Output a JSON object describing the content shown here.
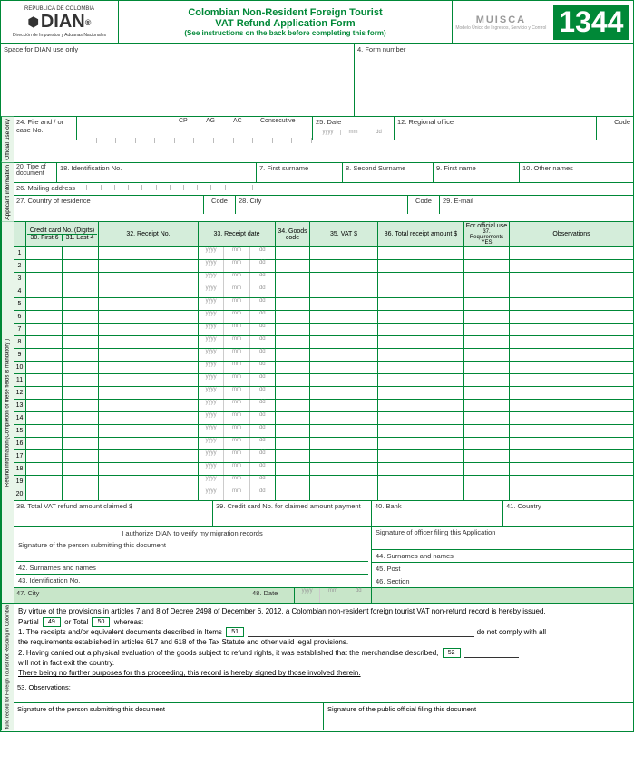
{
  "header": {
    "republic": "REPUBLICA DE COLOMBIA",
    "agency": "DIAN",
    "agency_sub": "Dirección de Impuestos y Aduanas Nacionales",
    "title1": "Colombian Non-Resident Foreign Tourist",
    "title2": "VAT Refund Application Form",
    "instruction": "(See instructions on the back before completing this form)",
    "muisca": "MUISCA",
    "muisca_sub": "Modelo Único de Ingresos, Servicio y Control",
    "form_number": "1344"
  },
  "top": {
    "dian_space": "Space for DIAN use only",
    "f4": "4. Form number"
  },
  "official": {
    "side": "Official use only",
    "f24": "24. File and / or case No.",
    "cp": "CP",
    "ag": "AG",
    "ac": "AC",
    "cons": "Consecutive",
    "f25": "25. Date",
    "yyyy": "yyyy",
    "mm": "mm",
    "dd": "dd",
    "f12": "12. Regional office",
    "code": "Code"
  },
  "applicant": {
    "side": "Applicant information",
    "f20": "20. Tipe of document",
    "f18": "18. Identification No.",
    "f7": "7. First surname",
    "f8": "8. Second Surname",
    "f9": "9. First name",
    "f10": "10. Other names",
    "f26": "26. Mailing address",
    "f27": "27. Country of residence",
    "code": "Code",
    "f28": "28. City",
    "f29": "29. E-mail"
  },
  "refund": {
    "side": "Refund information (Completion of these fields is mandatory )",
    "cc": "Credit card No. (Digits)",
    "f30": "30. First 6",
    "f31": "31. Last 4",
    "f32": "32. Receipt No.",
    "f33": "33. Receipt date",
    "f34": "34. Goods code",
    "f35": "35. VAT $",
    "f36": "36. Total receipt amount $",
    "off": "For official use",
    "f37": "37. Requirements YES",
    "obs": "Observations",
    "f38": "38. Total VAT refund amount claimed $",
    "f39": "39. Credit card No. for claimed amount payment",
    "f40": "40. Bank",
    "f41": "41. Country",
    "auth": "I authorize DIAN to verify my migration records",
    "sig_person": "Signature of the person submitting this document",
    "f42": "42. Surnames and names",
    "f43": "43. Identification No.",
    "sig_officer": "Signature of officer filing this Application",
    "f44": "44. Surnames and names",
    "f45": "45. Post",
    "f46": "46. Section",
    "f47": "47. City",
    "f48": "48. Date"
  },
  "legal": {
    "side": "fund record for Foreign Tourist not Residing in Colombia",
    "l1": "By virtue of the provisions in articles 7 and 8 of Decree 2498 of December 6, 2012, a Colombian non-resident foreign tourist VAT non-refund record is hereby issued.",
    "partial": "Partial",
    "total": "or  Total",
    "whereas": "whereas:",
    "b49": "49",
    "b50": "50",
    "b51": "51",
    "b52": "52",
    "l2a": "1. The receipts and/or equivalent documents described in Items",
    "l2b": "do not comply with all",
    "l3": "the requirements established in articles  617 and 618 of the Tax Statute and other valid legal provisions.",
    "l4a": "2. Having carried out a physical evaluation of the goods subject to refund rights, it was established that the merchandise described,",
    "l5": "will not in fact exit the country.",
    "l6": "There being no further purposes for this proceeding, this record is hereby signed by those involved therein.",
    "f53": "53. Observations:",
    "sig1": "Signature of the person submitting this document",
    "sig2": "Signature of the public official filing this document"
  },
  "date_hint": {
    "y": "yyyy",
    "m": "mm",
    "d": "dd"
  },
  "rows": [
    1,
    2,
    3,
    4,
    5,
    6,
    7,
    8,
    9,
    10,
    11,
    12,
    13,
    14,
    15,
    16,
    17,
    18,
    19,
    20
  ]
}
